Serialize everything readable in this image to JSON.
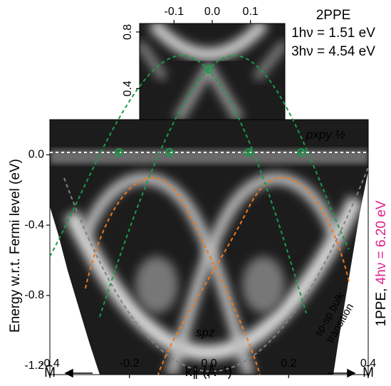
{
  "chart_data": {
    "type": "image",
    "x_label": "k∥ (Å⁻¹)",
    "y_label": "Energy w.r.t. Fermi level (eV)",
    "xlim": [
      -0.4,
      0.4
    ],
    "ylim": [
      -1.25,
      0.2
    ],
    "xticks": [
      -0.4,
      -0.2,
      {
        "value": 0,
        "label": "0.0"
      },
      0.2,
      0.4
    ],
    "yticks": [
      -1.2,
      -0.8,
      -0.4,
      {
        "value": 0,
        "label": "0.0"
      }
    ],
    "x_end_labels": [
      "M̄",
      "M̄"
    ],
    "inset": {
      "xlim": [
        -0.19,
        0.19
      ],
      "ylim": [
        0.18,
        0.86
      ],
      "xticks": [
        -0.1,
        {
          "value": 0,
          "label": "0.0"
        },
        0.1
      ],
      "yticks": [
        0.4,
        0.8
      ]
    },
    "legend": {
      "title": "2PPE",
      "entries": [
        {
          "text": "1hν = 1.51 eV",
          "color": "#e8202a"
        },
        {
          "text": "3hν = 4.54 eV",
          "color": "#1f5bbf"
        }
      ]
    },
    "side_label": {
      "prefix": "1PPE,",
      "text": "4hν = 6.20 eV",
      "color": "#e0208a"
    },
    "annotations": [
      {
        "text": "pxpy ½",
        "color": "#1a9a4a"
      },
      {
        "text": "spz",
        "color": "#e07020"
      },
      {
        "text": "sp-sp bulk",
        "color": "#b0b0b0"
      },
      {
        "text": "transition",
        "color": "#b0b0b0"
      }
    ]
  }
}
